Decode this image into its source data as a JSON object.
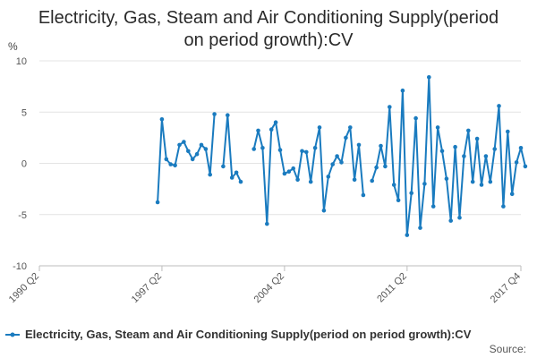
{
  "chart_data": {
    "type": "line",
    "title_lines": [
      "Electricity, Gas, Steam and Air Conditioning Supply(period",
      "on period growth):CV"
    ],
    "ylabel": "%",
    "ylim": [
      -10,
      10
    ],
    "y_ticks": [
      "10",
      "5",
      "0",
      "-5",
      "-10"
    ],
    "x_tick_labels": [
      "1990 Q2",
      "1997 Q2",
      "2004 Q2",
      "2011 Q2",
      "2017 Q4"
    ],
    "grid": true,
    "legend_position": "bottom-left",
    "series": [
      {
        "name": "Electricity, Gas, Steam and Air Conditioning Supply(period on period growth):CV",
        "color": "#1a7bbf",
        "segments": [
          [
            {
              "x": "1997 Q1",
              "y": -3.8
            },
            {
              "x": "1997 Q2",
              "y": 4.3
            },
            {
              "x": "1997 Q3",
              "y": 0.4
            },
            {
              "x": "1997 Q4",
              "y": -0.1
            },
            {
              "x": "1998 Q1",
              "y": -0.2
            },
            {
              "x": "1998 Q2",
              "y": 1.8
            },
            {
              "x": "1998 Q3",
              "y": 2.1
            },
            {
              "x": "1998 Q4",
              "y": 1.2
            },
            {
              "x": "1999 Q1",
              "y": 0.4
            },
            {
              "x": "1999 Q2",
              "y": 0.9
            },
            {
              "x": "1999 Q3",
              "y": 1.8
            },
            {
              "x": "1999 Q4",
              "y": 1.4
            },
            {
              "x": "2000 Q1",
              "y": -1.1
            },
            {
              "x": "2000 Q2",
              "y": 4.8
            }
          ],
          [
            {
              "x": "2000 Q4",
              "y": -0.3
            },
            {
              "x": "2001 Q1",
              "y": 4.7
            },
            {
              "x": "2001 Q2",
              "y": -1.4
            },
            {
              "x": "2001 Q3",
              "y": -0.9
            },
            {
              "x": "2001 Q4",
              "y": -1.8
            }
          ],
          [
            {
              "x": "2002 Q3",
              "y": 1.4
            },
            {
              "x": "2002 Q4",
              "y": 3.2
            },
            {
              "x": "2003 Q1",
              "y": 1.5
            },
            {
              "x": "2003 Q2",
              "y": -5.9
            },
            {
              "x": "2003 Q3",
              "y": 3.3
            },
            {
              "x": "2003 Q4",
              "y": 4.0
            },
            {
              "x": "2004 Q1",
              "y": 1.3
            },
            {
              "x": "2004 Q2",
              "y": -1.0
            },
            {
              "x": "2004 Q3",
              "y": -0.8
            },
            {
              "x": "2004 Q4",
              "y": -0.5
            },
            {
              "x": "2005 Q1",
              "y": -1.6
            },
            {
              "x": "2005 Q2",
              "y": 1.2
            },
            {
              "x": "2005 Q3",
              "y": 1.1
            },
            {
              "x": "2005 Q4",
              "y": -1.8
            },
            {
              "x": "2006 Q1",
              "y": 1.5
            },
            {
              "x": "2006 Q2",
              "y": 3.5
            },
            {
              "x": "2006 Q3",
              "y": -4.6
            },
            {
              "x": "2006 Q4",
              "y": -1.3
            },
            {
              "x": "2007 Q1",
              "y": -0.1
            },
            {
              "x": "2007 Q2",
              "y": 0.7
            },
            {
              "x": "2007 Q3",
              "y": 0.1
            },
            {
              "x": "2007 Q4",
              "y": 2.5
            },
            {
              "x": "2008 Q1",
              "y": 3.5
            },
            {
              "x": "2008 Q2",
              "y": -1.6
            },
            {
              "x": "2008 Q3",
              "y": 1.8
            },
            {
              "x": "2008 Q4",
              "y": -3.1
            }
          ],
          [
            {
              "x": "2009 Q2",
              "y": -1.7
            },
            {
              "x": "2009 Q3",
              "y": -0.4
            },
            {
              "x": "2009 Q4",
              "y": 1.7
            },
            {
              "x": "2010 Q1",
              "y": -0.3
            },
            {
              "x": "2010 Q2",
              "y": 5.5
            },
            {
              "x": "2010 Q3",
              "y": -2.1
            },
            {
              "x": "2010 Q4",
              "y": -3.6
            },
            {
              "x": "2011 Q1",
              "y": 7.1
            },
            {
              "x": "2011 Q2",
              "y": -7.0
            },
            {
              "x": "2011 Q3",
              "y": -2.9
            },
            {
              "x": "2011 Q4",
              "y": 4.4
            },
            {
              "x": "2012 Q1",
              "y": -6.3
            },
            {
              "x": "2012 Q2",
              "y": -2.0
            },
            {
              "x": "2012 Q3",
              "y": 8.4
            },
            {
              "x": "2012 Q4",
              "y": -4.2
            },
            {
              "x": "2013 Q1",
              "y": 3.5
            },
            {
              "x": "2013 Q2",
              "y": 1.2
            },
            {
              "x": "2013 Q3",
              "y": -1.5
            },
            {
              "x": "2013 Q4",
              "y": -5.6
            },
            {
              "x": "2014 Q1",
              "y": 1.6
            },
            {
              "x": "2014 Q2",
              "y": -5.3
            },
            {
              "x": "2014 Q3",
              "y": 0.7
            },
            {
              "x": "2014 Q4",
              "y": 3.2
            },
            {
              "x": "2015 Q1",
              "y": -1.8
            },
            {
              "x": "2015 Q2",
              "y": 2.4
            },
            {
              "x": "2015 Q3",
              "y": -2.1
            },
            {
              "x": "2015 Q4",
              "y": 0.7
            },
            {
              "x": "2016 Q1",
              "y": -1.8
            },
            {
              "x": "2016 Q2",
              "y": 1.4
            },
            {
              "x": "2016 Q3",
              "y": 5.6
            },
            {
              "x": "2016 Q4",
              "y": -4.2
            },
            {
              "x": "2017 Q1",
              "y": 3.1
            },
            {
              "x": "2017 Q2",
              "y": -3.0
            },
            {
              "x": "2017 Q3",
              "y": 0.1
            },
            {
              "x": "2017 Q4",
              "y": 1.5
            },
            {
              "x": "2018 Q1",
              "y": -0.3
            }
          ]
        ]
      }
    ],
    "source": "Source:"
  }
}
